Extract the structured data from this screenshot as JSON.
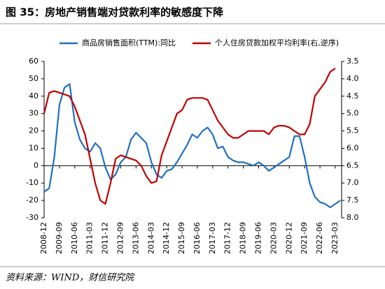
{
  "chart_data": {
    "type": "line",
    "title": "图 35：房地产销售端对贷款利率的敏感度下降",
    "source": "资料来源：WIND，财信研究院",
    "categories": [
      "2008-12",
      null,
      null,
      "2009-09",
      null,
      null,
      "2010-06",
      null,
      null,
      "2011-03",
      null,
      null,
      "2011-12",
      null,
      null,
      "2012-09",
      null,
      null,
      "2013-06",
      null,
      null,
      "2014-03",
      null,
      null,
      "2014-12",
      null,
      null,
      "2015-09",
      null,
      null,
      "2016-06",
      null,
      null,
      "2017-03",
      null,
      null,
      "2017-12",
      null,
      null,
      "2018-09",
      null,
      null,
      "2019-06",
      null,
      null,
      "2020-03",
      null,
      null,
      "2020-12",
      null,
      null,
      "2021-09",
      null,
      null,
      "2022-06",
      null,
      null,
      "2023-03",
      null
    ],
    "series": [
      {
        "name": "商品房销售面积(TTM):同比",
        "color": "#1f6fbf",
        "values": [
          -15,
          -13,
          5,
          35,
          45,
          47,
          25,
          15,
          10,
          8,
          13,
          10,
          -1,
          -8,
          -5,
          2,
          5,
          15,
          19,
          16,
          13,
          2,
          -5,
          -7,
          -3,
          -2,
          2,
          7,
          12,
          18,
          16,
          20,
          22,
          18,
          10,
          11,
          5,
          3,
          2,
          2,
          1,
          0,
          2,
          0,
          -3,
          -1,
          1,
          3,
          5,
          17,
          17,
          5,
          -10,
          -18,
          -21,
          -22,
          -24,
          -22,
          -20
        ]
      },
      {
        "name": "个人住房贷款加权平均利率(右,逆序)",
        "color": "#c00000",
        "axis": "y2",
        "values": [
          5.0,
          4.4,
          4.35,
          4.4,
          4.45,
          4.5,
          4.8,
          5.2,
          5.6,
          6.3,
          7.0,
          7.5,
          7.6,
          7.0,
          6.3,
          6.2,
          6.25,
          6.3,
          6.35,
          6.5,
          6.8,
          7.0,
          6.95,
          6.2,
          5.8,
          5.4,
          5.0,
          4.9,
          4.6,
          4.55,
          4.55,
          4.55,
          4.6,
          4.9,
          5.2,
          5.4,
          5.6,
          5.7,
          5.7,
          5.6,
          5.5,
          5.5,
          5.5,
          5.5,
          5.6,
          5.4,
          5.35,
          5.35,
          5.4,
          5.5,
          5.6,
          5.6,
          5.3,
          4.5,
          4.3,
          4.1,
          3.8,
          3.7,
          null
        ]
      }
    ],
    "ylim": [
      -30,
      60
    ],
    "yticks": [
      -30,
      -20,
      -10,
      0,
      10,
      20,
      30,
      40,
      50,
      60
    ],
    "y2lim": [
      3.5,
      8.0
    ],
    "y2_reverse": true,
    "y2ticks": [
      3.5,
      {
        "value": 4,
        "label": "4.0"
      },
      4.5,
      {
        "value": 5,
        "label": "5.0"
      },
      5.5,
      {
        "value": 6,
        "label": "6.0"
      },
      6.5,
      {
        "value": 7,
        "label": "7.0"
      },
      7.5,
      {
        "value": 8,
        "label": "8.0"
      }
    ],
    "legend": "top",
    "grid": false
  }
}
